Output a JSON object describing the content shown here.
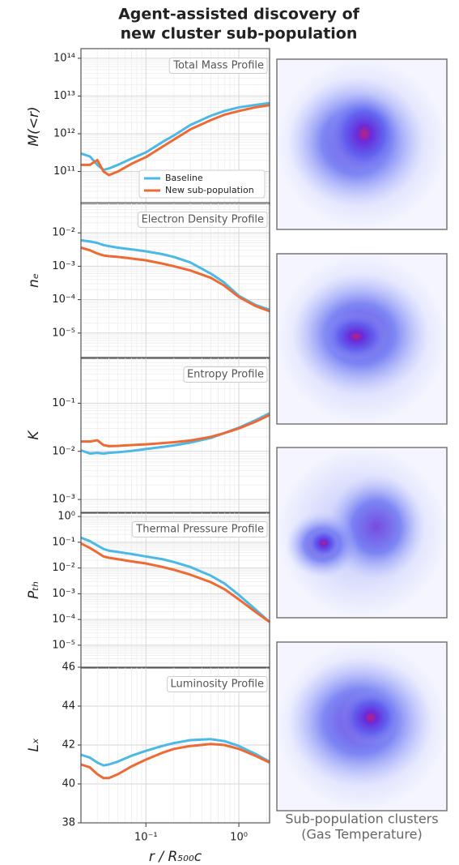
{
  "figure_title": [
    "Agent-assisted discovery of",
    "new cluster sub-population"
  ],
  "caption": [
    "Sub-population clusters",
    "(Gas Temperature)"
  ],
  "chart_data": [
    {
      "type": "line",
      "annotation": "Total Mass Profile",
      "ylabel": "M(<r)",
      "xlog": true,
      "ylog": true,
      "grid": true,
      "legend": "lower center",
      "x": [
        0.02,
        0.025,
        0.03,
        0.035,
        0.04,
        0.05,
        0.07,
        0.1,
        0.15,
        0.2,
        0.3,
        0.5,
        0.7,
        1,
        1.5,
        2.14
      ],
      "xlim": [
        0.02,
        2.14
      ],
      "xticks": [
        0.1,
        1
      ],
      "ylim": [
        13500000000.0,
        180000000000000.0
      ],
      "yticks": [
        {
          "value": 100000000000.0,
          "label": "10¹¹"
        },
        {
          "value": 1000000000000.0,
          "label": "10¹²"
        },
        {
          "value": 10000000000000.0,
          "label": "10¹³"
        },
        {
          "value": 100000000000000.0,
          "label": "10¹⁴"
        }
      ],
      "series": [
        {
          "name": "Baseline",
          "color": "#4cb8e6",
          "values": [
            300000000000.0,
            250000000000.0,
            150000000000.0,
            110000000000.0,
            120000000000.0,
            150000000000.0,
            220000000000.0,
            320000000000.0,
            600000000000.0,
            900000000000.0,
            1700000000000.0,
            3000000000000.0,
            4000000000000.0,
            5000000000000.0,
            5800000000000.0,
            6500000000000.0
          ]
        },
        {
          "name": "New sub-population",
          "color": "#ee6a35",
          "values": [
            150000000000.0,
            150000000000.0,
            200000000000.0,
            100000000000.0,
            80000000000.0,
            100000000000.0,
            160000000000.0,
            240000000000.0,
            450000000000.0,
            700000000000.0,
            1300000000000.0,
            2300000000000.0,
            3200000000000.0,
            4000000000000.0,
            5000000000000.0,
            5700000000000.0
          ]
        }
      ]
    },
    {
      "type": "line",
      "annotation": "Electron Density Profile",
      "ylabel": "nₑ",
      "xlog": true,
      "ylog": true,
      "grid": true,
      "x": [
        0.02,
        0.025,
        0.03,
        0.035,
        0.04,
        0.05,
        0.07,
        0.1,
        0.15,
        0.2,
        0.3,
        0.5,
        0.7,
        1,
        1.5,
        2.14
      ],
      "xlim": [
        0.02,
        2.14
      ],
      "xticks": [
        0.1,
        1
      ],
      "ylim": [
        1.75e-06,
        0.08
      ],
      "yticks": [
        {
          "value": 1e-05,
          "label": "10⁻⁵"
        },
        {
          "value": 0.0001,
          "label": "10⁻⁴"
        },
        {
          "value": 0.001,
          "label": "10⁻³"
        },
        {
          "value": 0.01,
          "label": "10⁻²"
        }
      ],
      "series": [
        {
          "color": "#4cb8e6",
          "values": [
            0.006,
            0.0055,
            0.005,
            0.0043,
            0.004,
            0.0036,
            0.0032,
            0.0028,
            0.0023,
            0.0019,
            0.0013,
            0.0006,
            0.00032,
            0.00013,
            7e-05,
            5e-05
          ]
        },
        {
          "color": "#ee6a35",
          "values": [
            0.0036,
            0.003,
            0.0024,
            0.0021,
            0.002,
            0.0019,
            0.0017,
            0.0015,
            0.0012,
            0.001,
            0.00075,
            0.00045,
            0.00026,
            0.00012,
            6.5e-05,
            4.5e-05
          ]
        }
      ]
    },
    {
      "type": "line",
      "annotation": "Entropy Profile",
      "ylabel": "K",
      "xlog": true,
      "ylog": true,
      "grid": true,
      "x": [
        0.02,
        0.025,
        0.03,
        0.035,
        0.04,
        0.05,
        0.07,
        0.1,
        0.15,
        0.2,
        0.3,
        0.5,
        0.7,
        1,
        1.5,
        2.14
      ],
      "xlim": [
        0.02,
        2.14
      ],
      "xticks": [
        0.1,
        1
      ],
      "ylim": [
        0.00052,
        0.89
      ],
      "yticks": [
        {
          "value": 0.001,
          "label": "10⁻³"
        },
        {
          "value": 0.01,
          "label": "10⁻²"
        },
        {
          "value": 0.1,
          "label": "10⁻¹"
        }
      ],
      "series": [
        {
          "color": "#4cb8e6",
          "values": [
            0.0105,
            0.009,
            0.0093,
            0.009,
            0.0093,
            0.0096,
            0.0102,
            0.0112,
            0.0123,
            0.0133,
            0.0152,
            0.019,
            0.024,
            0.031,
            0.044,
            0.062
          ]
        },
        {
          "color": "#ee6a35",
          "values": [
            0.016,
            0.016,
            0.017,
            0.0135,
            0.0128,
            0.013,
            0.0135,
            0.014,
            0.0148,
            0.0155,
            0.0168,
            0.02,
            0.024,
            0.03,
            0.041,
            0.057
          ]
        }
      ]
    },
    {
      "type": "line",
      "annotation": "Thermal Pressure Profile",
      "ylabel": "Pₜₕ",
      "xlog": true,
      "ylog": true,
      "grid": true,
      "x": [
        0.02,
        0.025,
        0.03,
        0.035,
        0.04,
        0.05,
        0.07,
        0.1,
        0.15,
        0.2,
        0.3,
        0.5,
        0.7,
        1,
        1.5,
        2.14
      ],
      "xlim": [
        0.02,
        2.14
      ],
      "xticks": [
        0.1,
        1
      ],
      "ylim": [
        1.3e-06,
        1.45
      ],
      "yticks": [
        {
          "value": 1e-05,
          "label": "10⁻⁵"
        },
        {
          "value": 0.0001,
          "label": "10⁻⁴"
        },
        {
          "value": 0.001,
          "label": "10⁻³"
        },
        {
          "value": 0.01,
          "label": "10⁻²"
        },
        {
          "value": 0.1,
          "label": "10⁻¹"
        },
        {
          "value": 1,
          "label": "10⁰"
        }
      ],
      "series": [
        {
          "color": "#4cb8e6",
          "values": [
            0.15,
            0.11,
            0.075,
            0.055,
            0.047,
            0.042,
            0.035,
            0.028,
            0.022,
            0.017,
            0.011,
            0.005,
            0.0025,
            0.0009,
            0.00025,
            8e-05
          ]
        },
        {
          "color": "#ee6a35",
          "values": [
            0.09,
            0.06,
            0.04,
            0.028,
            0.025,
            0.022,
            0.018,
            0.015,
            0.011,
            0.0085,
            0.0055,
            0.0028,
            0.0015,
            0.0006,
            0.0002,
            8e-05
          ]
        }
      ]
    },
    {
      "type": "line",
      "annotation": "Luminosity Profile",
      "ylabel": "Lₓ",
      "xlabel": "r / R₅₀₀c",
      "xlog": true,
      "ylog": false,
      "grid": true,
      "x": [
        0.02,
        0.025,
        0.03,
        0.035,
        0.04,
        0.05,
        0.07,
        0.1,
        0.15,
        0.2,
        0.3,
        0.5,
        0.7,
        1,
        1.5,
        2.14
      ],
      "xlim": [
        0.02,
        2.14
      ],
      "xticks": [
        {
          "value": 0.1,
          "label": "10⁻¹"
        },
        {
          "value": 1,
          "label": "10⁰"
        }
      ],
      "ylim": [
        38,
        46
      ],
      "yticks": [
        38,
        40,
        42,
        44,
        46
      ],
      "series": [
        {
          "color": "#4cb8e6",
          "values": [
            41.5,
            41.35,
            41.1,
            40.95,
            41.0,
            41.15,
            41.45,
            41.7,
            41.95,
            42.1,
            42.25,
            42.3,
            42.2,
            41.95,
            41.55,
            41.15
          ]
        },
        {
          "color": "#ee6a35",
          "values": [
            41.0,
            40.85,
            40.5,
            40.3,
            40.3,
            40.5,
            40.9,
            41.25,
            41.6,
            41.8,
            41.95,
            42.05,
            42.0,
            41.8,
            41.45,
            41.1
          ]
        }
      ]
    }
  ]
}
